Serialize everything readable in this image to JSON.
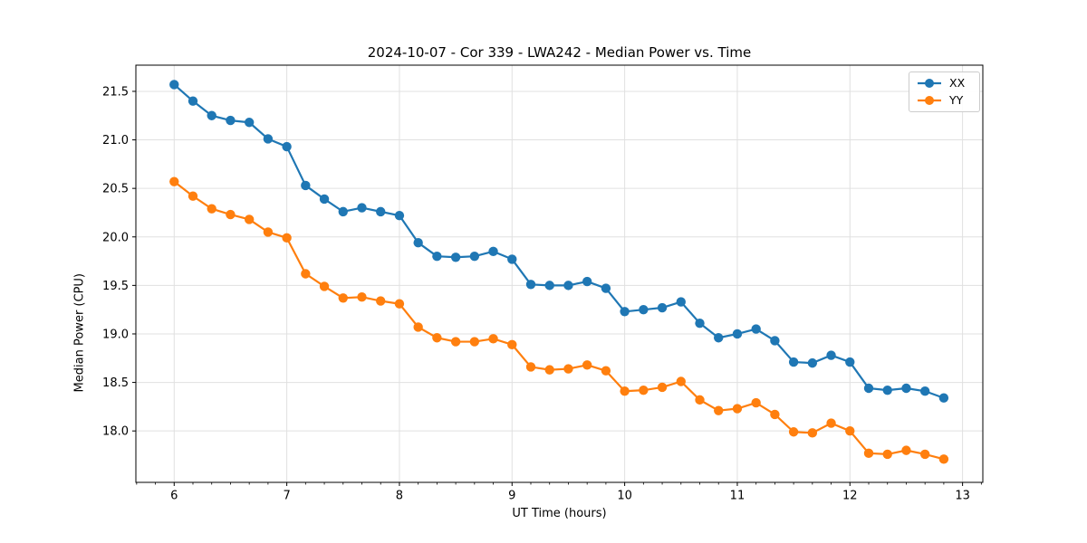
{
  "chart_data": {
    "type": "line",
    "title": "2024-10-07 - Cor 339 - LWA242 - Median Power vs. Time",
    "xlabel": "UT Time (hours)",
    "ylabel": "Median Power (CPU)",
    "legend_position": "upper right",
    "grid": true,
    "marker": "circle",
    "x": [
      6.0,
      6.1667,
      6.3333,
      6.5,
      6.6667,
      6.8333,
      7.0,
      7.1667,
      7.3333,
      7.5,
      7.6667,
      7.8333,
      8.0,
      8.1667,
      8.3333,
      8.5,
      8.6667,
      8.8333,
      9.0,
      9.1667,
      9.3333,
      9.5,
      9.6667,
      9.8333,
      10.0,
      10.1667,
      10.3333,
      10.5,
      10.6667,
      10.8333,
      11.0,
      11.1667,
      11.3333,
      11.5,
      11.6667,
      11.8333,
      12.0,
      12.1667,
      12.3333,
      12.5,
      12.6667,
      12.8333
    ],
    "series": [
      {
        "name": "XX",
        "color": "#1f77b4",
        "values": [
          21.57,
          21.4,
          21.25,
          21.2,
          21.18,
          21.01,
          20.93,
          20.53,
          20.39,
          20.26,
          20.3,
          20.26,
          20.22,
          19.94,
          19.8,
          19.79,
          19.8,
          19.85,
          19.77,
          19.51,
          19.5,
          19.5,
          19.54,
          19.47,
          19.23,
          19.25,
          19.27,
          19.33,
          19.11,
          18.96,
          19.0,
          19.05,
          18.93,
          18.71,
          18.7,
          18.78,
          18.71,
          18.44,
          18.42,
          18.44,
          18.41,
          18.34
        ]
      },
      {
        "name": "YY",
        "color": "#ff7f0e",
        "values": [
          20.57,
          20.42,
          20.29,
          20.23,
          20.18,
          20.05,
          19.99,
          19.62,
          19.49,
          19.37,
          19.38,
          19.34,
          19.31,
          19.07,
          18.96,
          18.92,
          18.92,
          18.95,
          18.89,
          18.66,
          18.63,
          18.64,
          18.68,
          18.62,
          18.41,
          18.42,
          18.45,
          18.51,
          18.32,
          18.21,
          18.23,
          18.29,
          18.17,
          17.99,
          17.98,
          18.08,
          18.0,
          17.77,
          17.76,
          17.8,
          17.76,
          17.71
        ]
      }
    ],
    "axes": {
      "xlim": [
        5.66,
        13.18
      ],
      "ylim": [
        17.47,
        21.77
      ],
      "xticks": {
        "values": [
          6,
          7,
          8,
          9,
          10,
          11,
          12,
          13
        ],
        "labels": [
          "6",
          "7",
          "8",
          "9",
          "10",
          "11",
          "12",
          "13"
        ]
      },
      "yticks": {
        "values": [
          18.0,
          18.5,
          19.0,
          19.5,
          20.0,
          20.5,
          21.0,
          21.5
        ],
        "labels": [
          "18.0",
          "18.5",
          "19.0",
          "19.5",
          "20.0",
          "20.5",
          "21.0",
          "21.5"
        ]
      },
      "x_minor_step": 0.166667
    },
    "style": {
      "grid_color": "#e0e0e0",
      "frame_color": "#000000",
      "tick_color": "#000000",
      "tick_label_color": "#000000",
      "background": "#ffffff"
    }
  }
}
